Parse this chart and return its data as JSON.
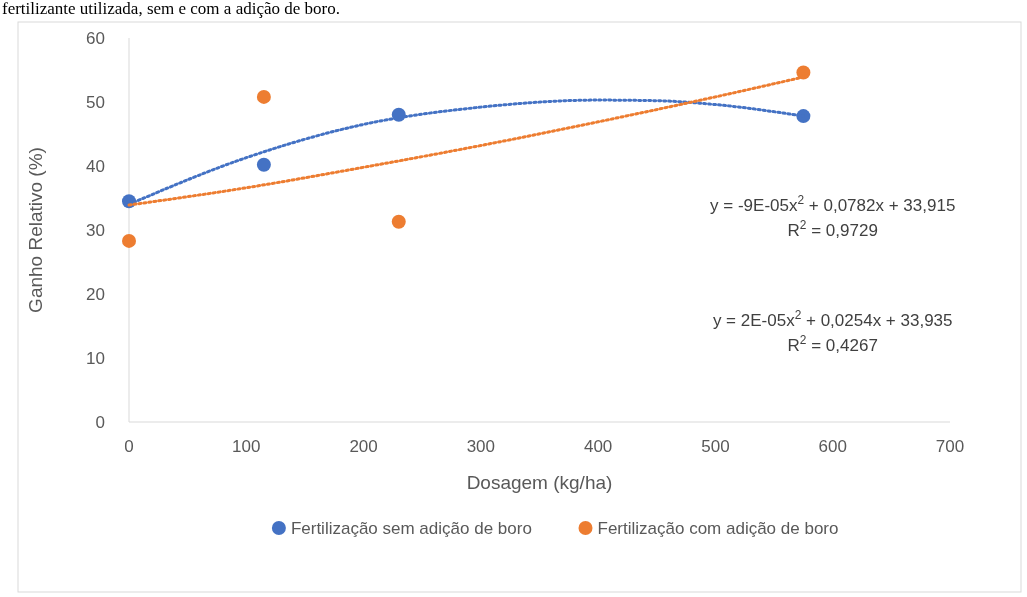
{
  "chart_data": {
    "type": "scatter",
    "xlabel": "Dosagem (kg/ha)",
    "ylabel": "Ganho Relativo (%)",
    "xlim": [
      0,
      700
    ],
    "xticks": [
      0,
      100,
      200,
      300,
      400,
      500,
      600,
      700
    ],
    "ylim": [
      0,
      60
    ],
    "yticks": [
      0,
      10,
      20,
      30,
      40,
      50,
      60
    ],
    "grid": false,
    "legend": "bottom",
    "marker": "circle",
    "series": [
      {
        "name": "Fertilização sem adição de boro",
        "color": "#4472c4",
        "x": [
          0,
          115,
          230,
          575
        ],
        "values": [
          34.5,
          40.2,
          48,
          47.8
        ]
      },
      {
        "name": "Fertilização com adição de boro",
        "color": "#ed7d31",
        "x": [
          0,
          115,
          230,
          575
        ],
        "values": [
          28.3,
          50.8,
          31.3,
          54.6
        ]
      },
      {
        "type": "line",
        "color": "#4472c4",
        "line_style": "dotted",
        "marker": "none",
        "x": [
          0,
          100,
          200,
          300,
          400,
          450,
          500,
          575
        ],
        "values": [
          34,
          41.3,
          46.5,
          49.2,
          50.3,
          50.2,
          49.6,
          47.8
        ]
      },
      {
        "type": "line",
        "color": "#ed7d31",
        "line_style": "dotted",
        "marker": "none",
        "x": [
          0,
          100,
          200,
          300,
          400,
          500,
          575
        ],
        "values": [
          33.9,
          36.6,
          39.8,
          43.2,
          46.9,
          50.8,
          53.9
        ]
      }
    ],
    "annotations": [
      "fertilizante utilizada, sem e com a adição de boro.",
      "y = -9E-05x$^{2}$ + 0,0782x + 33,915",
      "R$^{2}$ = 0,9729",
      "y = 2E-05x$^{2}$ + 0,0254x + 33,935",
      "R$^{2}$ = 0,4267"
    ]
  }
}
